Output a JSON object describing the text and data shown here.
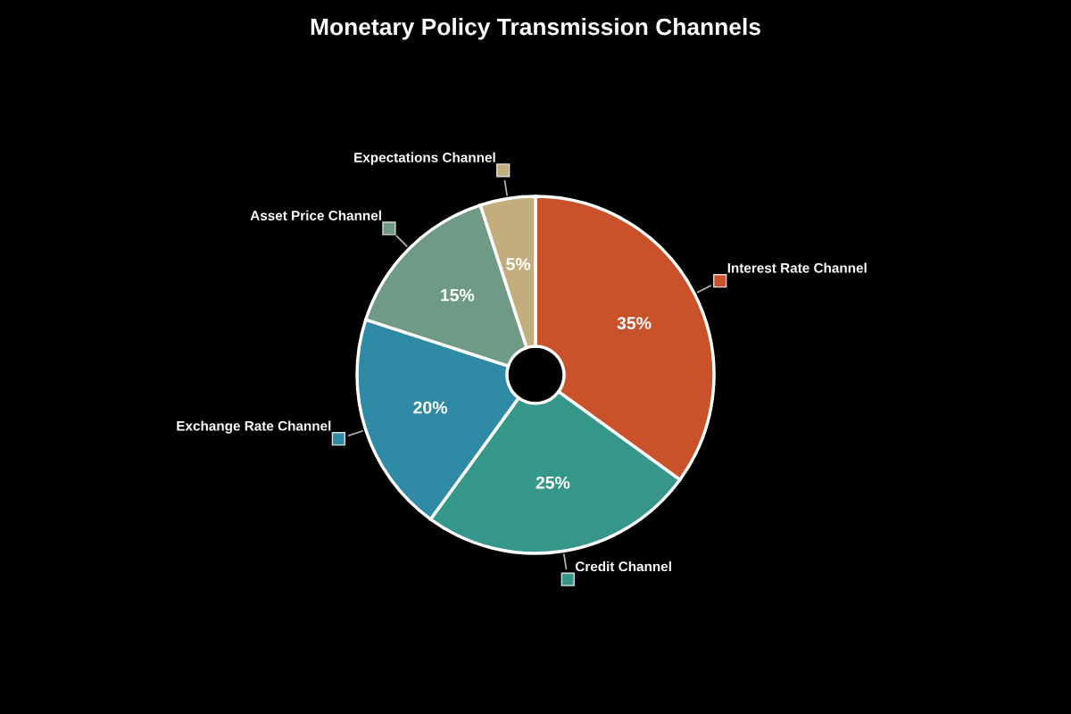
{
  "chart_data": {
    "type": "donut",
    "title": "Monetary Policy Transmission Channels",
    "categories": [
      "Interest Rate Channel",
      "Credit Channel",
      "Exchange Rate Channel",
      "Asset Price Channel",
      "Expectations Channel"
    ],
    "values": [
      35,
      25,
      20,
      15,
      5
    ],
    "colors": [
      "#c9522a",
      "#35968a",
      "#2f8aa6",
      "#6f9a86",
      "#c4ad7c"
    ],
    "value_labels": [
      "35%",
      "25%",
      "20%",
      "15%",
      "5%"
    ]
  }
}
